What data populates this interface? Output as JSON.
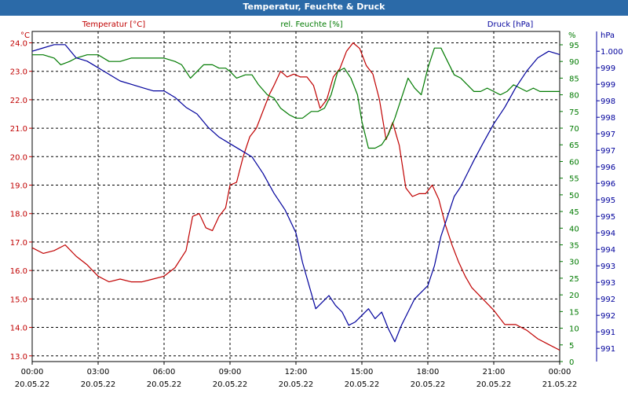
{
  "window": {
    "title": "Temperatur, Feuchte & Druck"
  },
  "colors": {
    "temperature": "#c00000",
    "humidity": "#007a00",
    "pressure": "#00009c",
    "grid": "#000000",
    "background": "#ffffff",
    "titlebar": "#2b6aa8"
  },
  "chart_data": {
    "type": "line",
    "title": "Temperatur, Feuchte & Druck",
    "x_ticks": [
      {
        "hours": 0,
        "time": "00:00",
        "date": "20.05.22"
      },
      {
        "hours": 3,
        "time": "03:00",
        "date": "20.05.22"
      },
      {
        "hours": 6,
        "time": "06:00",
        "date": "20.05.22"
      },
      {
        "hours": 9,
        "time": "09:00",
        "date": "20.05.22"
      },
      {
        "hours": 12,
        "time": "12:00",
        "date": "20.05.22"
      },
      {
        "hours": 15,
        "time": "15:00",
        "date": "20.05.22"
      },
      {
        "hours": 18,
        "time": "18:00",
        "date": "20.05.22"
      },
      {
        "hours": 21,
        "time": "21:00",
        "date": "20.05.22"
      },
      {
        "hours": 24,
        "time": "00:00",
        "date": "21.05.22"
      }
    ],
    "xlim": [
      0,
      24
    ],
    "axes": {
      "temperature": {
        "label": "Temperatur [°C]",
        "unit": "°C",
        "ylim": [
          12.8,
          24.4
        ],
        "ticks": [
          13.0,
          14.0,
          15.0,
          16.0,
          17.0,
          18.0,
          19.0,
          20.0,
          21.0,
          22.0,
          23.0,
          24.0
        ],
        "tick_labels": [
          "13.0",
          "14.0",
          "15.0",
          "16.0",
          "17.0",
          "18.0",
          "19.0",
          "20.0",
          "21.0",
          "22.0",
          "23.0",
          "24.0"
        ]
      },
      "humidity": {
        "label": "rel. Feuchte [%]",
        "unit": "%",
        "ylim": [
          0,
          99
        ],
        "ticks": [
          0,
          5,
          10,
          15,
          20,
          25,
          30,
          35,
          40,
          45,
          50,
          55,
          60,
          65,
          70,
          75,
          80,
          85,
          90,
          95
        ],
        "tick_labels": [
          "0",
          "5",
          "10",
          "15",
          "20",
          "25",
          "30",
          "35",
          "40",
          "45",
          "50",
          "55",
          "60",
          "65",
          "70",
          "75",
          "80",
          "85",
          "90",
          "95"
        ]
      },
      "pressure": {
        "label": "Druck [hPa]",
        "unit": "hPa",
        "ylim": [
          990.6,
          1000.6
        ],
        "ticks": [
          991.0,
          991.5,
          992.0,
          992.5,
          993.0,
          993.5,
          994.0,
          994.5,
          995.0,
          995.5,
          996.0,
          996.5,
          997.0,
          997.5,
          998.0,
          998.5,
          999.0,
          999.5,
          1000.0
        ],
        "tick_labels": [
          "991",
          "991",
          "992",
          "992",
          "993",
          "993",
          "994",
          "994",
          "995",
          "995",
          "996",
          "996",
          "997",
          "997",
          "998",
          "998",
          "999",
          "999",
          "1.000"
        ]
      }
    },
    "series": [
      {
        "name": "Temperatur [°C]",
        "axis": "temperature",
        "x": [
          0,
          0.5,
          1,
          1.5,
          2,
          2.5,
          3,
          3.5,
          4,
          4.5,
          5,
          5.5,
          6,
          6.5,
          7,
          7.3,
          7.6,
          7.9,
          8.2,
          8.5,
          8.8,
          9,
          9.3,
          9.6,
          9.9,
          10.2,
          10.5,
          10.8,
          11,
          11.3,
          11.6,
          11.9,
          12.2,
          12.5,
          12.8,
          13.1,
          13.4,
          13.7,
          14,
          14.3,
          14.6,
          14.9,
          15.2,
          15.5,
          15.8,
          16.1,
          16.4,
          16.7,
          17,
          17.3,
          17.6,
          17.9,
          18.2,
          18.5,
          18.8,
          19.1,
          19.4,
          19.7,
          20,
          20.5,
          21,
          21.5,
          22,
          22.5,
          23,
          23.5,
          24
        ],
        "values": [
          16.8,
          16.6,
          16.7,
          16.9,
          16.5,
          16.2,
          15.8,
          15.6,
          15.7,
          15.6,
          15.6,
          15.7,
          15.8,
          16.1,
          16.7,
          17.9,
          18.0,
          17.5,
          17.4,
          17.9,
          18.2,
          19.0,
          19.1,
          20.0,
          20.7,
          21.0,
          21.6,
          22.2,
          22.5,
          23.0,
          22.8,
          22.9,
          22.8,
          22.8,
          22.5,
          21.7,
          22.0,
          22.8,
          23.1,
          23.7,
          24.0,
          23.8,
          23.2,
          22.9,
          22.0,
          20.6,
          21.2,
          20.4,
          18.9,
          18.6,
          18.7,
          18.7,
          19.0,
          18.5,
          17.6,
          16.9,
          16.3,
          15.8,
          15.4,
          15.0,
          14.6,
          14.1,
          14.1,
          13.9,
          13.6,
          13.4,
          13.2
        ]
      },
      {
        "name": "rel. Feuchte [%]",
        "axis": "humidity",
        "x": [
          0,
          0.5,
          1,
          1.3,
          1.7,
          2,
          2.5,
          3,
          3.5,
          4,
          4.5,
          5,
          5.5,
          6,
          6.5,
          6.8,
          7.2,
          7.5,
          7.8,
          8.2,
          8.5,
          8.8,
          9,
          9.3,
          9.7,
          10,
          10.3,
          10.7,
          11,
          11.3,
          11.7,
          12,
          12.3,
          12.7,
          13,
          13.3,
          13.6,
          13.9,
          14.2,
          14.5,
          14.8,
          15,
          15.3,
          15.6,
          15.9,
          16.2,
          16.5,
          16.8,
          17.1,
          17.4,
          17.7,
          18,
          18.3,
          18.6,
          18.9,
          19.2,
          19.5,
          19.8,
          20.1,
          20.4,
          20.7,
          21,
          21.3,
          21.6,
          21.9,
          22.2,
          22.5,
          22.8,
          23.1,
          23.4,
          23.7,
          24
        ],
        "values": [
          92,
          92,
          91,
          89,
          90,
          91,
          92,
          92,
          90,
          90,
          91,
          91,
          91,
          91,
          90,
          89,
          85,
          87,
          89,
          89,
          88,
          88,
          87,
          85,
          86,
          86,
          83,
          80,
          79,
          76,
          74,
          73,
          73,
          75,
          75,
          76,
          80,
          87,
          88,
          85,
          80,
          72,
          64,
          64,
          65,
          68,
          73,
          79,
          85,
          82,
          80,
          88,
          94,
          94,
          90,
          86,
          85,
          83,
          81,
          81,
          82,
          81,
          80,
          81,
          83,
          82,
          81,
          82,
          81,
          81,
          81,
          81
        ]
      },
      {
        "name": "Druck [hPa]",
        "axis": "pressure",
        "x": [
          0,
          0.5,
          1,
          1.5,
          2,
          2.5,
          3,
          3.5,
          4,
          4.5,
          5,
          5.5,
          6,
          6.5,
          7,
          7.5,
          8,
          8.5,
          9,
          9.5,
          10,
          10.5,
          11,
          11.5,
          12,
          12.3,
          12.6,
          12.9,
          13.2,
          13.5,
          13.8,
          14.1,
          14.4,
          14.7,
          15,
          15.3,
          15.6,
          15.9,
          16.2,
          16.5,
          16.8,
          17.1,
          17.4,
          17.7,
          18,
          18.3,
          18.6,
          18.9,
          19.2,
          19.5,
          19.8,
          20.1,
          20.5,
          21,
          21.5,
          22,
          22.5,
          23,
          23.5,
          24
        ],
        "values": [
          1000.0,
          1000.1,
          1000.2,
          1000.2,
          999.8,
          999.7,
          999.5,
          999.3,
          999.1,
          999.0,
          998.9,
          998.8,
          998.8,
          998.6,
          998.3,
          998.1,
          997.7,
          997.4,
          997.2,
          997.0,
          996.8,
          996.3,
          995.7,
          995.2,
          994.5,
          993.6,
          992.9,
          992.2,
          992.4,
          992.6,
          992.3,
          992.1,
          991.7,
          991.8,
          992.0,
          992.2,
          991.9,
          992.1,
          991.6,
          991.2,
          991.7,
          992.1,
          992.5,
          992.7,
          992.9,
          993.5,
          994.4,
          995.0,
          995.6,
          995.9,
          996.3,
          996.7,
          997.2,
          997.8,
          998.3,
          998.9,
          999.4,
          999.8,
          1000.0,
          999.9
        ]
      }
    ]
  }
}
